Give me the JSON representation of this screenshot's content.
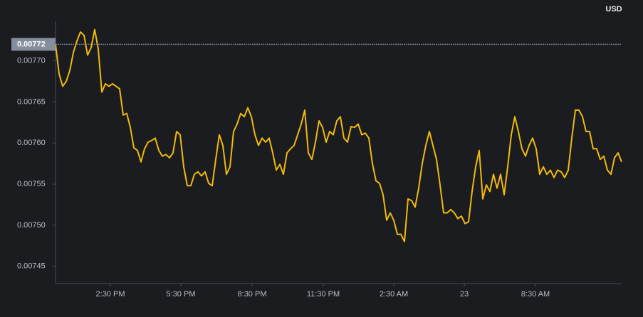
{
  "chart_data": {
    "type": "line",
    "currency": "USD",
    "color": "#f0b90b",
    "price_line": 0.00772,
    "values": [
      0.00772,
      0.007684,
      0.007669,
      0.007675,
      0.007688,
      0.00771,
      0.007724,
      0.007735,
      0.007731,
      0.007707,
      0.007716,
      0.007738,
      0.007714,
      0.007662,
      0.007672,
      0.007669,
      0.007672,
      0.007669,
      0.007666,
      0.007634,
      0.007636,
      0.007619,
      0.007594,
      0.007591,
      0.007577,
      0.007593,
      0.007601,
      0.007603,
      0.007606,
      0.007591,
      0.007584,
      0.007586,
      0.007582,
      0.007588,
      0.007614,
      0.00761,
      0.007571,
      0.007548,
      0.007548,
      0.007562,
      0.007565,
      0.00756,
      0.007565,
      0.007551,
      0.007548,
      0.00758,
      0.00761,
      0.007597,
      0.007562,
      0.007571,
      0.007614,
      0.007623,
      0.007636,
      0.007632,
      0.007643,
      0.007632,
      0.00761,
      0.007597,
      0.007606,
      0.007601,
      0.007606,
      0.007588,
      0.007567,
      0.007574,
      0.007562,
      0.007588,
      0.007593,
      0.007597,
      0.00761,
      0.007623,
      0.00764,
      0.007588,
      0.00758,
      0.007601,
      0.007627,
      0.007619,
      0.007601,
      0.007614,
      0.00761,
      0.007627,
      0.007632,
      0.007606,
      0.007601,
      0.00762,
      0.007619,
      0.007623,
      0.00761,
      0.007612,
      0.007606,
      0.007575,
      0.007554,
      0.007551,
      0.007537,
      0.007506,
      0.007515,
      0.007506,
      0.007489,
      0.007489,
      0.00748,
      0.007532,
      0.00753,
      0.007522,
      0.007545,
      0.007575,
      0.007597,
      0.007614,
      0.007597,
      0.00758,
      0.007549,
      0.007515,
      0.007515,
      0.007519,
      0.007515,
      0.007508,
      0.007511,
      0.007502,
      0.007504,
      0.007541,
      0.007571,
      0.007591,
      0.007532,
      0.007549,
      0.007541,
      0.007562,
      0.007545,
      0.007562,
      0.007537,
      0.007571,
      0.00761,
      0.007632,
      0.007614,
      0.007593,
      0.007584,
      0.007597,
      0.007606,
      0.007593,
      0.007562,
      0.007571,
      0.007562,
      0.007567,
      0.007558,
      0.007567,
      0.007565,
      0.007558,
      0.007567,
      0.007606,
      0.00764,
      0.00764,
      0.007632,
      0.007614,
      0.007614,
      0.007593,
      0.007593,
      0.00758,
      0.007584,
      0.007567,
      0.007562,
      0.007582,
      0.007588,
      0.007577
    ],
    "xlim": [
      0,
      159
    ],
    "xticks": [
      {
        "value": 15.4,
        "label": "2:30 PM"
      },
      {
        "value": 35.2,
        "label": "5:30 PM"
      },
      {
        "value": 55.2,
        "label": "8:30 PM"
      },
      {
        "value": 75.2,
        "label": "11:30 PM"
      },
      {
        "value": 95,
        "label": "2:30 AM"
      },
      {
        "value": 114.8,
        "label": "23"
      },
      {
        "value": 134.8,
        "label": "8:30 AM"
      }
    ],
    "ylim": [
      0.007429,
      0.007748
    ],
    "yticks": [
      0.00745,
      {
        "value": 0.0075,
        "label": "0.00750"
      },
      0.00755,
      {
        "value": 0.0076,
        "label": "0.00760"
      },
      0.00765,
      {
        "value": 0.0077,
        "label": "0.00770"
      }
    ]
  }
}
